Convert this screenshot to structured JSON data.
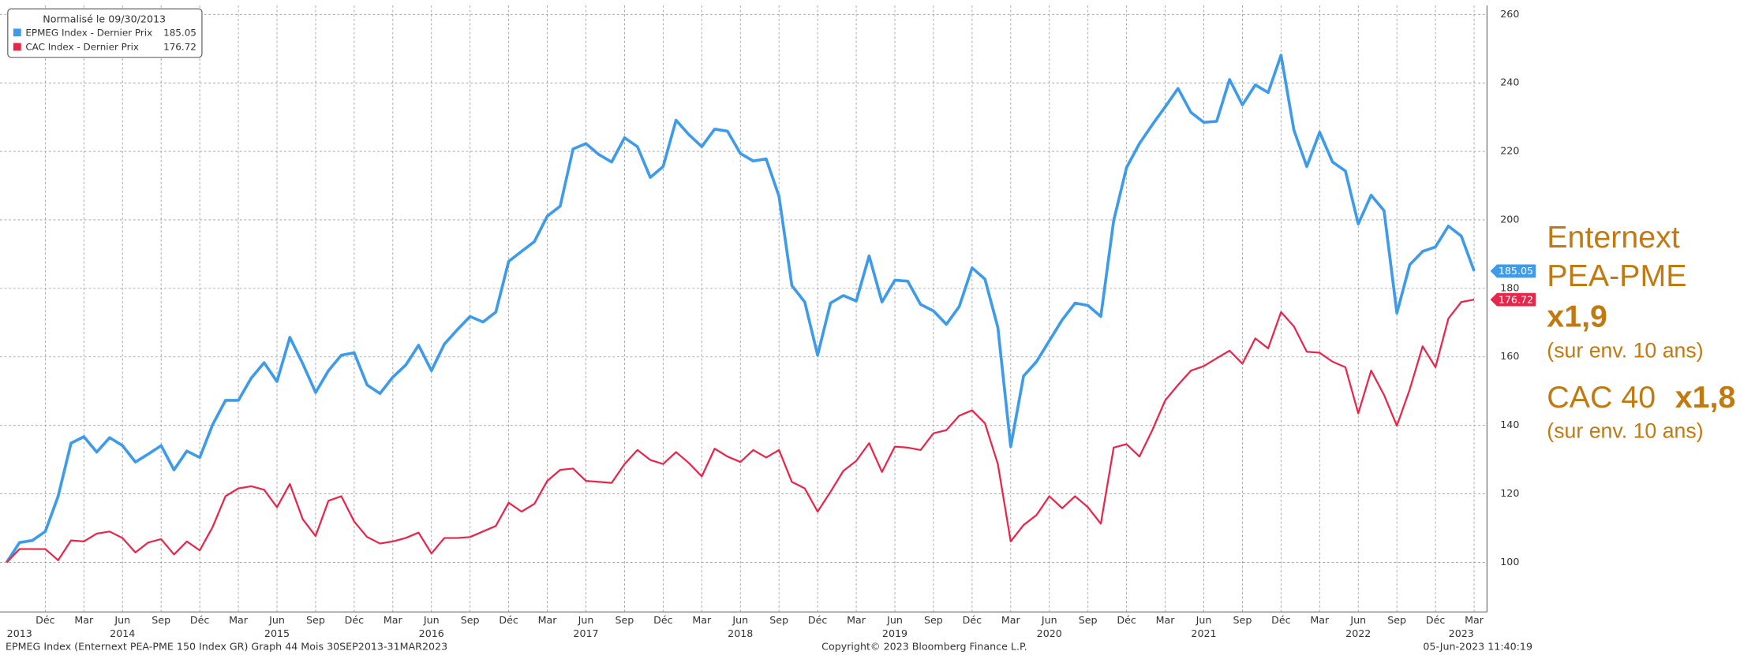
{
  "chart_data": {
    "type": "line",
    "legend_title": "Normalisé le 09/30/2013",
    "footer_left": "EPMEG Index (Enternext PEA-PME 150 Index GR) Graph 44  Mois 30SEP2013-31MAR2023",
    "footer_center": "Copyright© 2023 Bloomberg Finance L.P.",
    "footer_right": "05-Jun-2023 11:40:19",
    "annotations": [
      "Enternext",
      "PEA-PME",
      "x1,9",
      "(sur env. 10 ans)",
      "CAC 40",
      "x1,8",
      "(sur env. 10 ans)"
    ],
    "annotation_color": "#c17a12",
    "categories": [
      "2013-09",
      "2013-10",
      "2013-11",
      "2013-12",
      "2014-01",
      "2014-02",
      "2014-03",
      "2014-04",
      "2014-05",
      "2014-06",
      "2014-07",
      "2014-08",
      "2014-09",
      "2014-10",
      "2014-11",
      "2014-12",
      "2015-01",
      "2015-02",
      "2015-03",
      "2015-04",
      "2015-05",
      "2015-06",
      "2015-07",
      "2015-08",
      "2015-09",
      "2015-10",
      "2015-11",
      "2015-12",
      "2016-01",
      "2016-02",
      "2016-03",
      "2016-04",
      "2016-05",
      "2016-06",
      "2016-07",
      "2016-08",
      "2016-09",
      "2016-10",
      "2016-11",
      "2016-12",
      "2017-01",
      "2017-02",
      "2017-03",
      "2017-04",
      "2017-05",
      "2017-06",
      "2017-07",
      "2017-08",
      "2017-09",
      "2017-10",
      "2017-11",
      "2017-12",
      "2018-01",
      "2018-02",
      "2018-03",
      "2018-04",
      "2018-05",
      "2018-06",
      "2018-07",
      "2018-08",
      "2018-09",
      "2018-10",
      "2018-11",
      "2018-12",
      "2019-01",
      "2019-02",
      "2019-03",
      "2019-04",
      "2019-05",
      "2019-06",
      "2019-07",
      "2019-08",
      "2019-09",
      "2019-10",
      "2019-11",
      "2019-12",
      "2020-01",
      "2020-02",
      "2020-03",
      "2020-04",
      "2020-05",
      "2020-06",
      "2020-07",
      "2020-08",
      "2020-09",
      "2020-10",
      "2020-11",
      "2020-12",
      "2021-01",
      "2021-02",
      "2021-03",
      "2021-04",
      "2021-05",
      "2021-06",
      "2021-07",
      "2021-08",
      "2021-09",
      "2021-10",
      "2021-11",
      "2021-12",
      "2022-01",
      "2022-02",
      "2022-03",
      "2022-04",
      "2022-05",
      "2022-06",
      "2022-07",
      "2022-08",
      "2022-09",
      "2022-10",
      "2022-11",
      "2022-12",
      "2023-01",
      "2023-02",
      "2023-03"
    ],
    "series": [
      {
        "name": "EPMEG Index - Dernier Prix",
        "color": "#3d9be9",
        "values": [
          100,
          105.8,
          106.4,
          109,
          119.3,
          134.8,
          136.7,
          132.2,
          136.4,
          134.1,
          129.3,
          131.6,
          134.1,
          127,
          132.5,
          130.6,
          140.2,
          147.3,
          147.3,
          153.8,
          158.3,
          152.8,
          165.7,
          158,
          149.6,
          156,
          160.5,
          161.2,
          151.8,
          149.3,
          154.1,
          157.6,
          163.4,
          156,
          163.7,
          167.9,
          171.8,
          170.2,
          173.1,
          187.9,
          190.8,
          193.7,
          201.1,
          204,
          220.7,
          222.3,
          219.1,
          216.9,
          224,
          221.4,
          212.4,
          215.6,
          229.1,
          224.9,
          221.4,
          226.5,
          225.9,
          219.4,
          217.2,
          217.8,
          206.9,
          180.8,
          176,
          160.5,
          175.7,
          177.9,
          176.3,
          189.5,
          176,
          182.4,
          182.1,
          175.3,
          173.4,
          169.5,
          174.7,
          186,
          182.7,
          168.6,
          133.8,
          154.4,
          158.6,
          164.7,
          170.8,
          175.7,
          175,
          171.8,
          199.8,
          215.3,
          222.3,
          227.8,
          233,
          238.4,
          231.4,
          228.5,
          228.8,
          241,
          233.6,
          239.4,
          237.2,
          248.1,
          226.2,
          215.6,
          225.6,
          216.9,
          214.3,
          198.8,
          207.2,
          202.7,
          172.8,
          186.9,
          190.8,
          192.1,
          198.2,
          195.3,
          185.05
        ]
      },
      {
        "name": "CAC Index - Dernier Prix",
        "color": "#e8264a",
        "values": [
          100,
          103.9,
          103.9,
          103.9,
          100.6,
          106.4,
          106.1,
          108.4,
          109,
          107.1,
          102.9,
          105.8,
          106.8,
          102.3,
          106.1,
          103.5,
          110.3,
          119.3,
          121.6,
          122.2,
          121.2,
          116.1,
          122.9,
          112.6,
          107.7,
          118,
          119.3,
          111.9,
          107.4,
          105.5,
          106.1,
          107.1,
          108.7,
          102.6,
          107.1,
          107.1,
          107.4,
          109,
          110.6,
          117.4,
          114.8,
          117.1,
          123.8,
          127,
          127.4,
          123.8,
          123.5,
          123.2,
          128.7,
          132.8,
          129.9,
          128.7,
          132.2,
          129,
          125.1,
          133.2,
          130.9,
          129.3,
          132.8,
          130.6,
          132.8,
          123.5,
          121.6,
          114.8,
          120.6,
          126.7,
          129.6,
          134.8,
          126.4,
          133.8,
          133.5,
          132.8,
          137.7,
          138.6,
          142.8,
          144.4,
          140.6,
          128.7,
          106.1,
          110.9,
          113.8,
          119.3,
          115.8,
          119.3,
          116.1,
          111.3,
          133.5,
          134.5,
          130.9,
          138.6,
          147.3,
          151.8,
          156,
          157.3,
          159.6,
          161.8,
          158,
          165.4,
          162.5,
          173.1,
          168.9,
          161.5,
          161.2,
          158.6,
          157,
          143.5,
          156,
          148.9,
          139.9,
          150.5,
          163.1,
          157,
          171.2,
          176,
          176.72
        ]
      }
    ],
    "xticks": [
      {
        "value": "2013-12",
        "label": "Déc"
      },
      {
        "value": "2014-03",
        "label": "Mar"
      },
      {
        "value": "2014-06",
        "label": "Jun"
      },
      {
        "value": "2014-09",
        "label": "Sep"
      },
      {
        "value": "2014-12",
        "label": "Déc"
      },
      {
        "value": "2015-03",
        "label": "Mar"
      },
      {
        "value": "2015-06",
        "label": "Jun"
      },
      {
        "value": "2015-09",
        "label": "Sep"
      },
      {
        "value": "2015-12",
        "label": "Déc"
      },
      {
        "value": "2016-03",
        "label": "Mar"
      },
      {
        "value": "2016-06",
        "label": "Jun"
      },
      {
        "value": "2016-09",
        "label": "Sep"
      },
      {
        "value": "2016-12",
        "label": "Déc"
      },
      {
        "value": "2017-03",
        "label": "Mar"
      },
      {
        "value": "2017-06",
        "label": "Jun"
      },
      {
        "value": "2017-09",
        "label": "Sep"
      },
      {
        "value": "2017-12",
        "label": "Déc"
      },
      {
        "value": "2018-03",
        "label": "Mar"
      },
      {
        "value": "2018-06",
        "label": "Jun"
      },
      {
        "value": "2018-09",
        "label": "Sep"
      },
      {
        "value": "2018-12",
        "label": "Déc"
      },
      {
        "value": "2019-03",
        "label": "Mar"
      },
      {
        "value": "2019-06",
        "label": "Jun"
      },
      {
        "value": "2019-09",
        "label": "Sep"
      },
      {
        "value": "2019-12",
        "label": "Déc"
      },
      {
        "value": "2020-03",
        "label": "Mar"
      },
      {
        "value": "2020-06",
        "label": "Jun"
      },
      {
        "value": "2020-09",
        "label": "Sep"
      },
      {
        "value": "2020-12",
        "label": "Déc"
      },
      {
        "value": "2021-03",
        "label": "Mar"
      },
      {
        "value": "2021-06",
        "label": "Jun"
      },
      {
        "value": "2021-09",
        "label": "Sep"
      },
      {
        "value": "2021-12",
        "label": "Déc"
      },
      {
        "value": "2022-03",
        "label": "Mar"
      },
      {
        "value": "2022-06",
        "label": "Jun"
      },
      {
        "value": "2022-09",
        "label": "Sep"
      },
      {
        "value": "2022-12",
        "label": "Déc"
      },
      {
        "value": "2023-03",
        "label": "Mar"
      }
    ],
    "year_ticks": [
      {
        "value": "2013-10",
        "label": "2013"
      },
      {
        "value": "2014-06",
        "label": "2014"
      },
      {
        "value": "2015-06",
        "label": "2015"
      },
      {
        "value": "2016-06",
        "label": "2016"
      },
      {
        "value": "2017-06",
        "label": "2017"
      },
      {
        "value": "2018-06",
        "label": "2018"
      },
      {
        "value": "2019-06",
        "label": "2019"
      },
      {
        "value": "2020-06",
        "label": "2020"
      },
      {
        "value": "2021-06",
        "label": "2021"
      },
      {
        "value": "2022-06",
        "label": "2022"
      },
      {
        "value": "2023-02",
        "label": "2023"
      }
    ],
    "ylim": [
      85.5,
      262.6
    ],
    "yticks": [
      100,
      120,
      140,
      160,
      180,
      200,
      220,
      240,
      260
    ],
    "grid": true
  }
}
